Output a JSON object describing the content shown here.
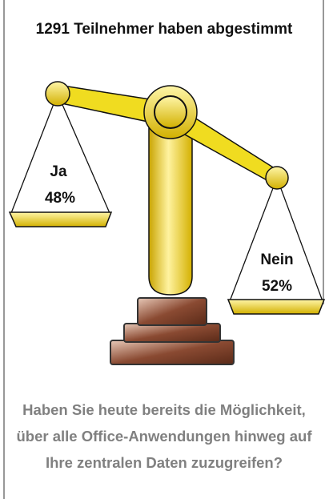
{
  "title": "1291 Teilnehmer haben abgestimmt",
  "options": [
    {
      "label": "Ja",
      "percent": "48%"
    },
    {
      "label": "Nein",
      "percent": "52%"
    }
  ],
  "question": "Haben Sie heute bereits die Möglichkeit, über alle Office-Anwendungen hinweg auf Ihre zentralen Daten zuzugreifen?"
}
